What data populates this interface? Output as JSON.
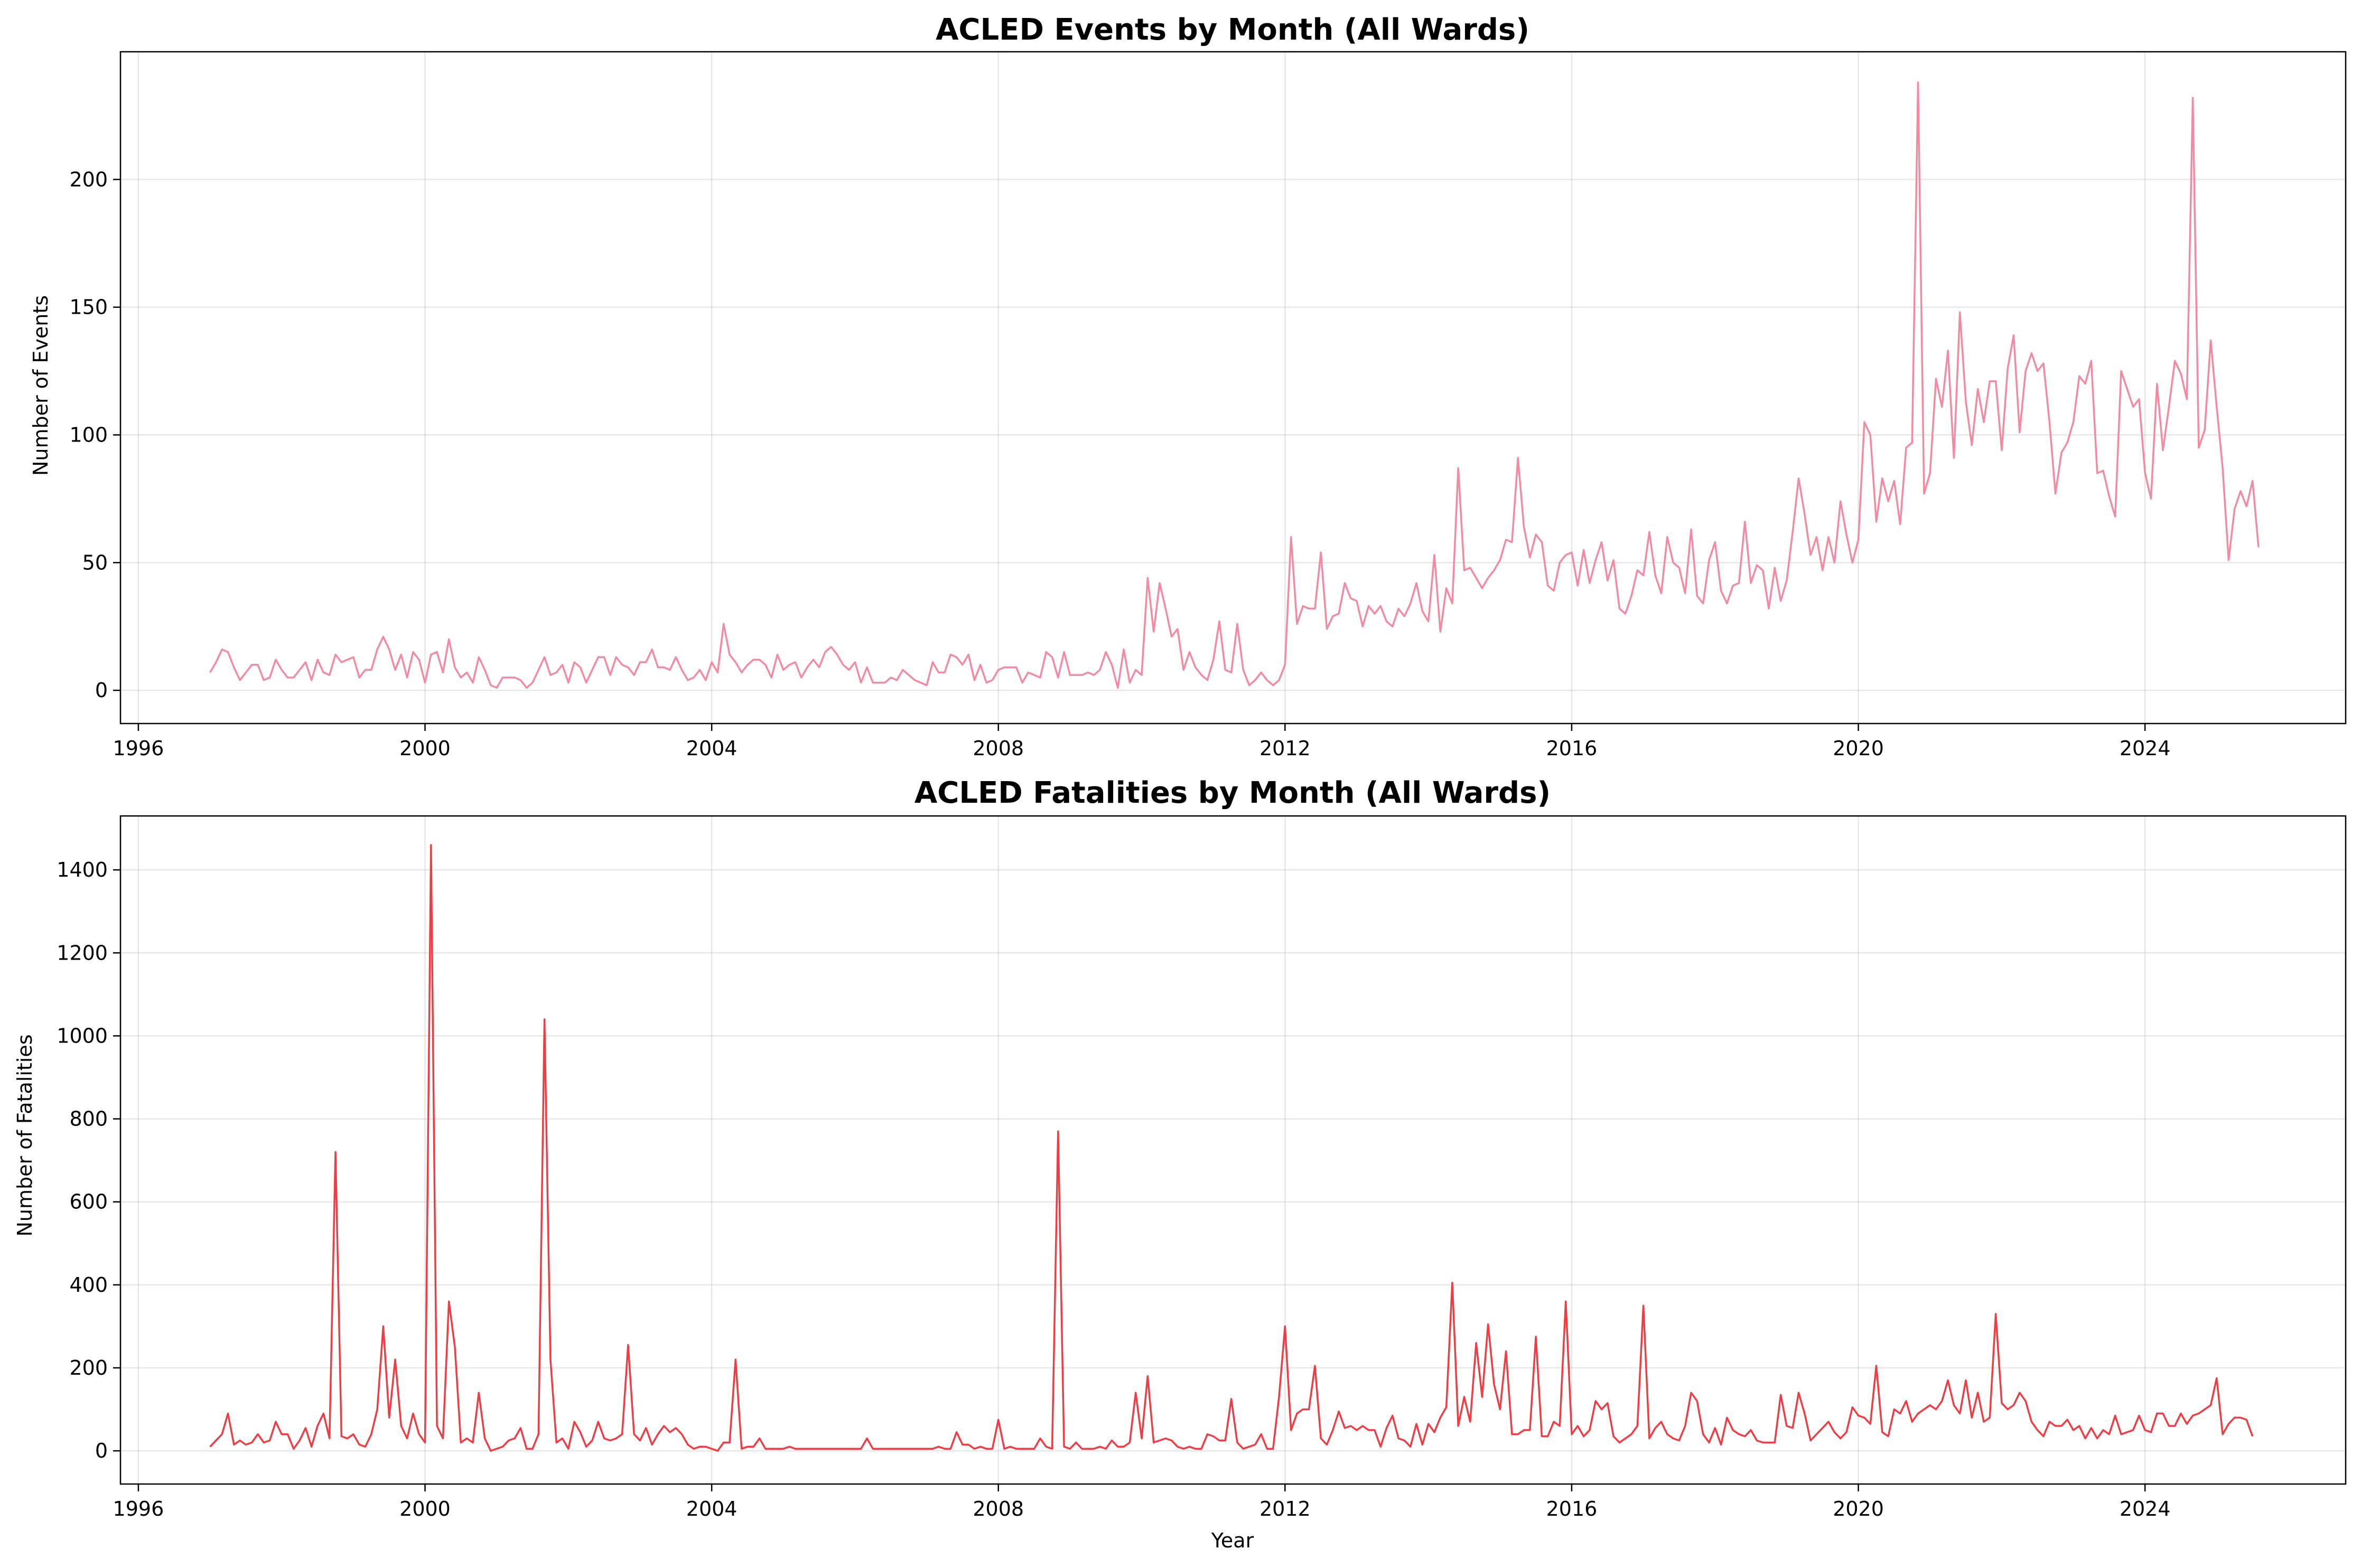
{
  "chart_data": [
    {
      "type": "line",
      "title": "ACLED Events by Month (All Wards)",
      "xlabel": "",
      "ylabel": "Number of Events",
      "xlim": [
        1995.75,
        2026.8
      ],
      "ylim": [
        -13,
        250
      ],
      "xticks": [
        1996,
        2000,
        2004,
        2008,
        2012,
        2016,
        2020,
        2024
      ],
      "xtick_labels": [
        "1996",
        "2000",
        "2004",
        "2008",
        "2012",
        "2016",
        "2020",
        "2024"
      ],
      "yticks": [
        0,
        50,
        100,
        150,
        200
      ],
      "ytick_labels": [
        "0",
        "50",
        "100",
        "150",
        "200"
      ],
      "grid": true,
      "color": "#f48aa2",
      "x_start": 1997.0,
      "x_step_months": 1,
      "series": [
        {
          "values": [
            7,
            11,
            16,
            15,
            9,
            4,
            7,
            10,
            10,
            4,
            5,
            12,
            8,
            5,
            5,
            8,
            11,
            4,
            12,
            7,
            6,
            14,
            11,
            12,
            13,
            5,
            8,
            8,
            16,
            21,
            16,
            8,
            14,
            5,
            15,
            12,
            3,
            14,
            15,
            7,
            20,
            9,
            5,
            7,
            3,
            13,
            8,
            2,
            1,
            5,
            5,
            5,
            4,
            1,
            3,
            8,
            13,
            6,
            7,
            10,
            3,
            11,
            9,
            3,
            8,
            13,
            13,
            6,
            13,
            10,
            9,
            6,
            11,
            11,
            16,
            9,
            9,
            8,
            13,
            8,
            4,
            5,
            8,
            4,
            11,
            7,
            26,
            14,
            11,
            7,
            10,
            12,
            12,
            10,
            5,
            14,
            8,
            10,
            11,
            5,
            9,
            12,
            9,
            15,
            17,
            14,
            10,
            8,
            11,
            3,
            9,
            3,
            3,
            3,
            5,
            4,
            8,
            6,
            4,
            3,
            2,
            11,
            7,
            7,
            14,
            13,
            10,
            14,
            4,
            10,
            3,
            4,
            8,
            9,
            9,
            9,
            3,
            7,
            6,
            5,
            15,
            13,
            5,
            15,
            6,
            6,
            6,
            7,
            6,
            8,
            15,
            10,
            1,
            16,
            3,
            8,
            6,
            44,
            23,
            42,
            32,
            21,
            24,
            8,
            15,
            9,
            6,
            4,
            12,
            27,
            8,
            7,
            26,
            8,
            2,
            4,
            7,
            4,
            2,
            4,
            10,
            60,
            26,
            33,
            32,
            32,
            54,
            24,
            29,
            30,
            42,
            36,
            35,
            25,
            33,
            30,
            33,
            27,
            25,
            32,
            29,
            34,
            42,
            31,
            27,
            53,
            23,
            40,
            34,
            87,
            47,
            48,
            44,
            40,
            44,
            47,
            51,
            59,
            58,
            91,
            64,
            52,
            61,
            58,
            41,
            39,
            50,
            53,
            54,
            41,
            55,
            42,
            51,
            58,
            43,
            51,
            32,
            30,
            37,
            47,
            45,
            62,
            45,
            38,
            60,
            50,
            48,
            38,
            63,
            37,
            34,
            51,
            58,
            39,
            34,
            41,
            42,
            66,
            42,
            49,
            47,
            32,
            48,
            35,
            43,
            62,
            83,
            69,
            53,
            60,
            47,
            60,
            50,
            74,
            61,
            50,
            59,
            105,
            100,
            66,
            83,
            74,
            82,
            65,
            95,
            97,
            238,
            77,
            85,
            122,
            111,
            133,
            91,
            148,
            113,
            96,
            118,
            105,
            121,
            121,
            94,
            126,
            139,
            101,
            125,
            132,
            125,
            128,
            105,
            77,
            93,
            97,
            105,
            123,
            120,
            129,
            85,
            86,
            76,
            68,
            125,
            118,
            111,
            114,
            85,
            75,
            120,
            94,
            111,
            129,
            124,
            114,
            232,
            95,
            102,
            137,
            111,
            87,
            51,
            71,
            78,
            72,
            82,
            56
          ]
        }
      ]
    },
    {
      "type": "line",
      "title": "ACLED Fatalities by Month (All Wards)",
      "xlabel": "Year",
      "ylabel": "Number of Fatalities",
      "xlim": [
        1995.75,
        2026.8
      ],
      "ylim": [
        -80,
        1530
      ],
      "xticks": [
        1996,
        2000,
        2004,
        2008,
        2012,
        2016,
        2020,
        2024
      ],
      "xtick_labels": [
        "1996",
        "2000",
        "2004",
        "2008",
        "2012",
        "2016",
        "2020",
        "2024"
      ],
      "yticks": [
        0,
        200,
        400,
        600,
        800,
        1000,
        1200,
        1400
      ],
      "ytick_labels": [
        "0",
        "200",
        "400",
        "600",
        "800",
        "1000",
        "1200",
        "1400"
      ],
      "grid": true,
      "color": "#f03c42",
      "x_start": 1997.0,
      "x_step_months": 1,
      "series": [
        {
          "values": [
            10,
            25,
            40,
            90,
            15,
            25,
            15,
            20,
            40,
            20,
            25,
            70,
            40,
            40,
            5,
            25,
            55,
            10,
            60,
            90,
            30,
            720,
            35,
            30,
            40,
            15,
            10,
            40,
            100,
            300,
            80,
            220,
            60,
            30,
            90,
            40,
            20,
            1460,
            60,
            30,
            360,
            250,
            20,
            30,
            20,
            140,
            30,
            0,
            5,
            10,
            25,
            30,
            55,
            5,
            5,
            40,
            1040,
            220,
            20,
            30,
            5,
            70,
            45,
            10,
            25,
            70,
            30,
            25,
            30,
            40,
            255,
            40,
            25,
            55,
            15,
            40,
            60,
            45,
            55,
            40,
            15,
            5,
            10,
            10,
            5,
            0,
            20,
            20,
            220,
            5,
            10,
            10,
            30,
            5,
            5,
            5,
            5,
            10,
            5,
            5,
            5,
            5,
            5,
            5,
            5,
            5,
            5,
            5,
            5,
            5,
            30,
            5,
            5,
            5,
            5,
            5,
            5,
            5,
            5,
            5,
            5,
            5,
            10,
            5,
            5,
            45,
            15,
            15,
            5,
            10,
            5,
            5,
            75,
            5,
            10,
            5,
            5,
            5,
            5,
            30,
            10,
            5,
            770,
            10,
            5,
            20,
            5,
            5,
            5,
            10,
            5,
            25,
            10,
            10,
            20,
            140,
            30,
            180,
            20,
            25,
            30,
            25,
            10,
            5,
            10,
            5,
            5,
            40,
            35,
            25,
            25,
            125,
            20,
            5,
            10,
            15,
            40,
            5,
            5,
            130,
            300,
            50,
            90,
            100,
            100,
            205,
            30,
            15,
            50,
            95,
            55,
            60,
            50,
            60,
            50,
            50,
            10,
            55,
            85,
            30,
            25,
            10,
            65,
            15,
            65,
            45,
            80,
            105,
            405,
            60,
            130,
            70,
            260,
            130,
            305,
            160,
            100,
            240,
            40,
            40,
            50,
            50,
            275,
            35,
            35,
            70,
            60,
            360,
            40,
            60,
            35,
            50,
            120,
            100,
            115,
            35,
            20,
            30,
            40,
            60,
            350,
            30,
            55,
            70,
            40,
            30,
            25,
            60,
            140,
            120,
            40,
            20,
            55,
            15,
            80,
            50,
            40,
            35,
            50,
            25,
            20,
            20,
            20,
            135,
            60,
            55,
            140,
            90,
            25,
            40,
            55,
            70,
            45,
            30,
            45,
            105,
            85,
            80,
            65,
            205,
            45,
            35,
            100,
            90,
            120,
            70,
            90,
            100,
            110,
            100,
            120,
            170,
            110,
            90,
            170,
            80,
            140,
            70,
            80,
            330,
            115,
            100,
            110,
            140,
            120,
            70,
            50,
            35,
            70,
            60,
            60,
            75,
            50,
            60,
            30,
            55,
            30,
            50,
            40,
            85,
            40,
            45,
            50,
            85,
            50,
            45,
            90,
            90,
            60,
            60,
            90,
            65,
            85,
            90,
            100,
            110,
            175,
            40,
            65,
            80,
            80,
            75,
            35
          ]
        }
      ]
    }
  ]
}
